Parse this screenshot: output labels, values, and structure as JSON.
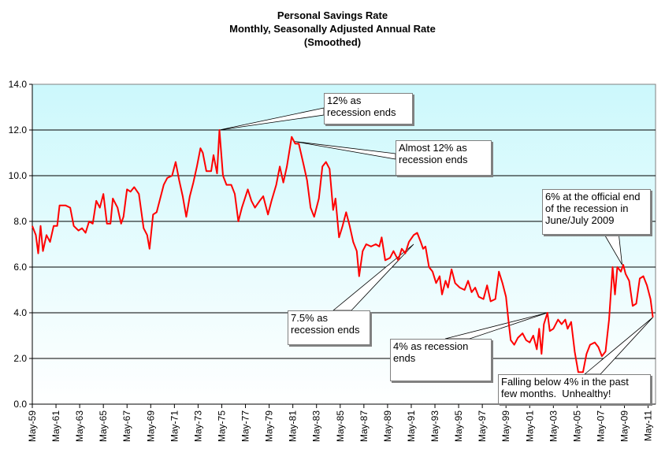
{
  "chart_data": {
    "type": "line",
    "title": "Personal Savings Rate",
    "subtitle": "Monthly, Seasonally Adjusted Annual Rate",
    "subtitle2": "(Smoothed)",
    "xlabel": "",
    "ylabel": "",
    "ylim": [
      0,
      14
    ],
    "yticks": [
      "0.0",
      "2.0",
      "4.0",
      "6.0",
      "8.0",
      "10.0",
      "12.0",
      "14.0"
    ],
    "grid": true,
    "xticks": [
      "May-59",
      "May-61",
      "May-63",
      "May-65",
      "May-67",
      "May-69",
      "May-71",
      "May-73",
      "May-75",
      "May-77",
      "May-79",
      "May-81",
      "May-83",
      "May-85",
      "May-87",
      "May-89",
      "May-91",
      "May-93",
      "May-95",
      "May-97",
      "May-99",
      "May-01",
      "May-03",
      "May-05",
      "May-07",
      "May-09",
      "May-11"
    ],
    "series": [
      {
        "name": "Personal Savings Rate",
        "color": "#ff0000",
        "points": [
          [
            1959.4,
            7.8
          ],
          [
            1959.7,
            7.4
          ],
          [
            1959.9,
            6.6
          ],
          [
            1960.1,
            7.8
          ],
          [
            1960.3,
            6.7
          ],
          [
            1960.6,
            7.4
          ],
          [
            1960.9,
            7.1
          ],
          [
            1961.2,
            7.8
          ],
          [
            1961.5,
            7.8
          ],
          [
            1961.7,
            8.7
          ],
          [
            1962.2,
            8.7
          ],
          [
            1962.6,
            8.6
          ],
          [
            1962.9,
            7.8
          ],
          [
            1963.3,
            7.6
          ],
          [
            1963.6,
            7.7
          ],
          [
            1963.9,
            7.5
          ],
          [
            1964.2,
            8.0
          ],
          [
            1964.5,
            7.9
          ],
          [
            1964.8,
            8.9
          ],
          [
            1965.1,
            8.6
          ],
          [
            1965.4,
            9.2
          ],
          [
            1965.7,
            7.9
          ],
          [
            1966.0,
            7.9
          ],
          [
            1966.2,
            9.0
          ],
          [
            1966.6,
            8.6
          ],
          [
            1966.9,
            7.9
          ],
          [
            1967.1,
            8.2
          ],
          [
            1967.4,
            9.4
          ],
          [
            1967.7,
            9.3
          ],
          [
            1968.0,
            9.5
          ],
          [
            1968.4,
            9.2
          ],
          [
            1968.8,
            7.7
          ],
          [
            1969.1,
            7.4
          ],
          [
            1969.3,
            6.8
          ],
          [
            1969.6,
            8.3
          ],
          [
            1969.9,
            8.4
          ],
          [
            1970.2,
            9.0
          ],
          [
            1970.5,
            9.6
          ],
          [
            1970.8,
            9.9
          ],
          [
            1971.2,
            10.0
          ],
          [
            1971.5,
            10.6
          ],
          [
            1971.8,
            9.8
          ],
          [
            1972.1,
            9.1
          ],
          [
            1972.4,
            8.2
          ],
          [
            1972.7,
            9.1
          ],
          [
            1973.0,
            9.7
          ],
          [
            1973.3,
            10.4
          ],
          [
            1973.6,
            11.2
          ],
          [
            1973.8,
            11.0
          ],
          [
            1974.1,
            10.2
          ],
          [
            1974.5,
            10.2
          ],
          [
            1974.7,
            10.9
          ],
          [
            1975.0,
            10.1
          ],
          [
            1975.2,
            12.0
          ],
          [
            1975.5,
            10.0
          ],
          [
            1975.8,
            9.6
          ],
          [
            1976.2,
            9.6
          ],
          [
            1976.5,
            9.2
          ],
          [
            1976.8,
            8.0
          ],
          [
            1977.1,
            8.6
          ],
          [
            1977.6,
            9.4
          ],
          [
            1977.9,
            8.9
          ],
          [
            1978.2,
            8.6
          ],
          [
            1978.6,
            8.9
          ],
          [
            1978.9,
            9.1
          ],
          [
            1979.3,
            8.3
          ],
          [
            1979.6,
            8.9
          ],
          [
            1980.0,
            9.6
          ],
          [
            1980.3,
            10.4
          ],
          [
            1980.6,
            9.7
          ],
          [
            1980.9,
            10.4
          ],
          [
            1981.3,
            11.7
          ],
          [
            1981.6,
            11.4
          ],
          [
            1981.9,
            11.4
          ],
          [
            1982.3,
            10.5
          ],
          [
            1982.6,
            9.8
          ],
          [
            1982.9,
            8.6
          ],
          [
            1983.2,
            8.2
          ],
          [
            1983.6,
            9.0
          ],
          [
            1983.9,
            10.4
          ],
          [
            1984.2,
            10.6
          ],
          [
            1984.5,
            10.3
          ],
          [
            1984.8,
            8.5
          ],
          [
            1985.0,
            9.0
          ],
          [
            1985.3,
            7.3
          ],
          [
            1985.6,
            7.8
          ],
          [
            1985.9,
            8.4
          ],
          [
            1986.2,
            7.8
          ],
          [
            1986.5,
            7.1
          ],
          [
            1986.8,
            6.7
          ],
          [
            1987.0,
            5.6
          ],
          [
            1987.3,
            6.7
          ],
          [
            1987.6,
            7.0
          ],
          [
            1988.0,
            6.9
          ],
          [
            1988.4,
            7.0
          ],
          [
            1988.7,
            6.9
          ],
          [
            1988.9,
            7.3
          ],
          [
            1989.2,
            6.3
          ],
          [
            1989.6,
            6.4
          ],
          [
            1989.9,
            6.7
          ],
          [
            1990.3,
            6.3
          ],
          [
            1990.6,
            6.8
          ],
          [
            1990.9,
            6.6
          ],
          [
            1991.2,
            7.1
          ],
          [
            1991.6,
            7.4
          ],
          [
            1991.9,
            7.5
          ],
          [
            1992.2,
            7.1
          ],
          [
            1992.4,
            6.8
          ],
          [
            1992.6,
            6.9
          ],
          [
            1992.9,
            6.0
          ],
          [
            1993.2,
            5.8
          ],
          [
            1993.5,
            5.3
          ],
          [
            1993.8,
            5.6
          ],
          [
            1994.0,
            4.8
          ],
          [
            1994.3,
            5.4
          ],
          [
            1994.5,
            5.1
          ],
          [
            1994.8,
            5.9
          ],
          [
            1995.1,
            5.3
          ],
          [
            1995.5,
            5.1
          ],
          [
            1995.9,
            5.0
          ],
          [
            1996.2,
            5.4
          ],
          [
            1996.5,
            4.9
          ],
          [
            1996.8,
            5.1
          ],
          [
            1997.1,
            4.7
          ],
          [
            1997.5,
            4.6
          ],
          [
            1997.8,
            5.2
          ],
          [
            1998.1,
            4.5
          ],
          [
            1998.5,
            4.6
          ],
          [
            1998.8,
            5.8
          ],
          [
            1999.1,
            5.3
          ],
          [
            1999.4,
            4.7
          ],
          [
            1999.6,
            3.7
          ],
          [
            1999.8,
            2.8
          ],
          [
            2000.1,
            2.6
          ],
          [
            2000.4,
            2.9
          ],
          [
            2000.8,
            3.1
          ],
          [
            2001.1,
            2.8
          ],
          [
            2001.4,
            2.7
          ],
          [
            2001.7,
            3.0
          ],
          [
            2002.0,
            2.4
          ],
          [
            2002.2,
            3.3
          ],
          [
            2002.4,
            2.2
          ],
          [
            2002.6,
            3.5
          ],
          [
            2002.9,
            4.0
          ],
          [
            2003.1,
            3.2
          ],
          [
            2003.4,
            3.3
          ],
          [
            2003.8,
            3.7
          ],
          [
            2004.1,
            3.5
          ],
          [
            2004.4,
            3.7
          ],
          [
            2004.6,
            3.3
          ],
          [
            2004.9,
            3.6
          ],
          [
            2005.2,
            2.3
          ],
          [
            2005.5,
            1.4
          ],
          [
            2005.9,
            1.4
          ],
          [
            2006.2,
            2.2
          ],
          [
            2006.5,
            2.6
          ],
          [
            2006.9,
            2.7
          ],
          [
            2007.2,
            2.5
          ],
          [
            2007.5,
            2.1
          ],
          [
            2007.8,
            2.3
          ],
          [
            2008.1,
            3.7
          ],
          [
            2008.4,
            6.0
          ],
          [
            2008.6,
            4.8
          ],
          [
            2008.8,
            6.0
          ],
          [
            2009.1,
            5.8
          ],
          [
            2009.3,
            6.1
          ],
          [
            2009.5,
            5.7
          ],
          [
            2009.8,
            5.4
          ],
          [
            2010.1,
            4.3
          ],
          [
            2010.4,
            4.4
          ],
          [
            2010.7,
            5.5
          ],
          [
            2011.0,
            5.6
          ],
          [
            2011.3,
            5.2
          ],
          [
            2011.6,
            4.6
          ],
          [
            2011.8,
            3.8
          ]
        ]
      }
    ],
    "annotations": [
      {
        "text_lines": [
          "12% as",
          "recession ends"
        ],
        "target": [
          1975.2,
          12.0
        ]
      },
      {
        "text_lines": [
          "Almost 12% as",
          "recession ends"
        ],
        "target": [
          1981.5,
          11.5
        ]
      },
      {
        "text_lines": [
          "6% at the official end",
          "of the recession in",
          "June/July 2009"
        ],
        "target": [
          2009.2,
          6.1
        ]
      },
      {
        "text_lines": [
          "7.5% as",
          "recession ends"
        ],
        "target": [
          1991.6,
          7.0
        ]
      },
      {
        "text_lines": [
          "4% as recession",
          "ends"
        ],
        "target": [
          2002.9,
          4.0
        ]
      },
      {
        "text_lines": [
          "Falling below 4% in the past",
          "few months.  Unhealthy!"
        ],
        "target": [
          2011.8,
          3.8
        ]
      }
    ]
  }
}
